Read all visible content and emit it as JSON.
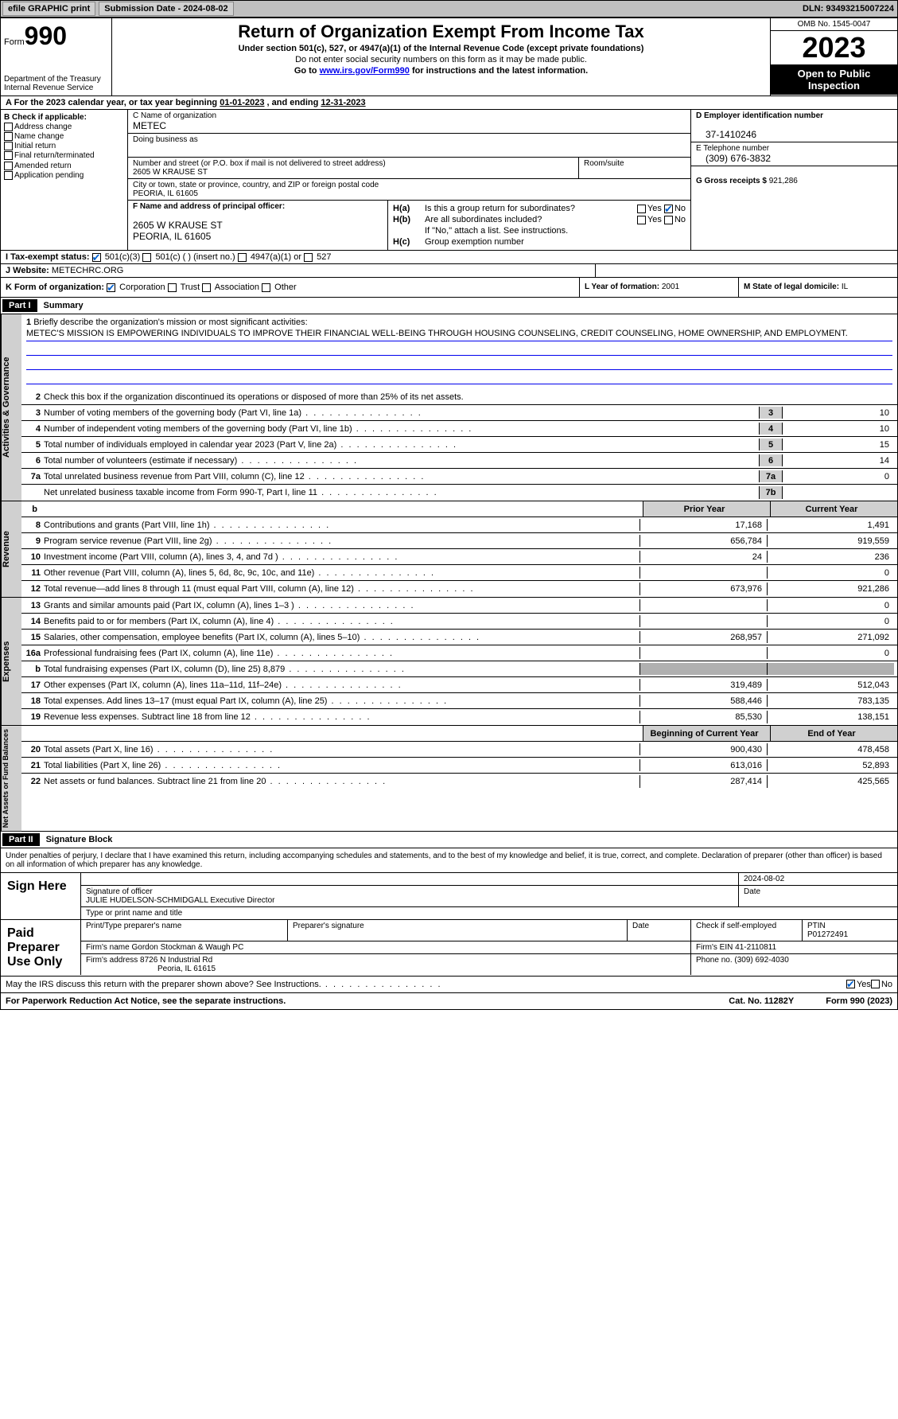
{
  "topbar": {
    "efile": "efile GRAPHIC print",
    "sub_label": "Submission Date - ",
    "sub_date": "2024-08-02",
    "dln_label": "DLN: ",
    "dln": "93493215007224"
  },
  "header": {
    "form_word": "Form",
    "form_no": "990",
    "dept": "Department of the Treasury\nInternal Revenue Service",
    "title": "Return of Organization Exempt From Income Tax",
    "sub1": "Under section 501(c), 527, or 4947(a)(1) of the Internal Revenue Code (except private foundations)",
    "sub2": "Do not enter social security numbers on this form as it may be made public.",
    "sub3_a": "Go to ",
    "sub3_link": "www.irs.gov/Form990",
    "sub3_b": " for instructions and the latest information.",
    "omb": "OMB No. 1545-0047",
    "year": "2023",
    "public": "Open to Public Inspection"
  },
  "a": {
    "text_a": "For the 2023 calendar year, or tax year beginning ",
    "begin": "01-01-2023",
    "text_b": " , and ending ",
    "end": "12-31-2023"
  },
  "b": {
    "title": "B Check if applicable:",
    "opts": [
      "Address change",
      "Name change",
      "Initial return",
      "Final return/terminated",
      "Amended return",
      "Application pending"
    ]
  },
  "c": {
    "name_lbl": "C Name of organization",
    "name": "METEC",
    "dba_lbl": "Doing business as",
    "street_lbl": "Number and street (or P.O. box if mail is not delivered to street address)",
    "street": "2605 W KRAUSE ST",
    "room_lbl": "Room/suite",
    "city_lbl": "City or town, state or province, country, and ZIP or foreign postal code",
    "city": "PEORIA, IL  61605"
  },
  "d": {
    "lbl": "D Employer identification number",
    "val": "37-1410246"
  },
  "e": {
    "lbl": "E Telephone number",
    "val": "(309) 676-3832"
  },
  "g": {
    "lbl": "G Gross receipts $",
    "val": "921,286"
  },
  "f": {
    "lbl": "F  Name and address of principal officer:",
    "addr1": "2605 W KRAUSE ST",
    "addr2": "PEORIA, IL  61605"
  },
  "h": {
    "a_lbl": "H(a)",
    "a_txt": "Is this a group return for subordinates?",
    "a_no": true,
    "b_lbl": "H(b)",
    "b_txt": "Are all subordinates included?",
    "b_note": "If \"No,\" attach a list. See instructions.",
    "c_lbl": "H(c)",
    "c_txt": "Group exemption number  "
  },
  "i": {
    "lbl": "I  Tax-exempt status:",
    "opts": [
      "501(c)(3)",
      "501(c) (  ) (insert no.)",
      "4947(a)(1) or",
      "527"
    ],
    "checked": 0
  },
  "j": {
    "lbl": "J  Website:  ",
    "val": "METECHRC.ORG"
  },
  "k": {
    "lbl": "K Form of organization:",
    "opts": [
      "Corporation",
      "Trust",
      "Association",
      "Other"
    ],
    "checked": 0
  },
  "l": {
    "lbl": "L Year of formation: ",
    "val": "2001"
  },
  "m": {
    "lbl": "M State of legal domicile: ",
    "val": "IL"
  },
  "part1": {
    "hdr": "Part I",
    "title": "Summary"
  },
  "gov": {
    "label": "Activities & Governance",
    "l1_lbl": "Briefly describe the organization's mission or most significant activities:",
    "l1_txt": "METEC'S MISSION IS EMPOWERING INDIVIDUALS TO IMPROVE THEIR FINANCIAL WELL-BEING THROUGH HOUSING COUNSELING, CREDIT COUNSELING, HOME OWNERSHIP, AND EMPLOYMENT.",
    "l2": "Check this box      if the organization discontinued its operations or disposed of more than 25% of its net assets.",
    "rows": [
      {
        "n": "3",
        "t": "Number of voting members of the governing body (Part VI, line 1a)",
        "bn": "3",
        "bv": "10"
      },
      {
        "n": "4",
        "t": "Number of independent voting members of the governing body (Part VI, line 1b)",
        "bn": "4",
        "bv": "10"
      },
      {
        "n": "5",
        "t": "Total number of individuals employed in calendar year 2023 (Part V, line 2a)",
        "bn": "5",
        "bv": "15"
      },
      {
        "n": "6",
        "t": "Total number of volunteers (estimate if necessary)",
        "bn": "6",
        "bv": "14"
      },
      {
        "n": "7a",
        "t": "Total unrelated business revenue from Part VIII, column (C), line 12",
        "bn": "7a",
        "bv": "0"
      },
      {
        "n": "",
        "t": "Net unrelated business taxable income from Form 990-T, Part I, line 11",
        "bn": "7b",
        "bv": ""
      }
    ]
  },
  "cols": {
    "b": "b",
    "prior": "Prior Year",
    "current": "Current Year"
  },
  "rev": {
    "label": "Revenue",
    "rows": [
      {
        "n": "8",
        "t": "Contributions and grants (Part VIII, line 1h)",
        "c1": "17,168",
        "c2": "1,491"
      },
      {
        "n": "9",
        "t": "Program service revenue (Part VIII, line 2g)",
        "c1": "656,784",
        "c2": "919,559"
      },
      {
        "n": "10",
        "t": "Investment income (Part VIII, column (A), lines 3, 4, and 7d )",
        "c1": "24",
        "c2": "236"
      },
      {
        "n": "11",
        "t": "Other revenue (Part VIII, column (A), lines 5, 6d, 8c, 9c, 10c, and 11e)",
        "c1": "",
        "c2": "0"
      },
      {
        "n": "12",
        "t": "Total revenue—add lines 8 through 11 (must equal Part VIII, column (A), line 12)",
        "c1": "673,976",
        "c2": "921,286"
      }
    ]
  },
  "exp": {
    "label": "Expenses",
    "rows": [
      {
        "n": "13",
        "t": "Grants and similar amounts paid (Part IX, column (A), lines 1–3 )",
        "c1": "",
        "c2": "0"
      },
      {
        "n": "14",
        "t": "Benefits paid to or for members (Part IX, column (A), line 4)",
        "c1": "",
        "c2": "0"
      },
      {
        "n": "15",
        "t": "Salaries, other compensation, employee benefits (Part IX, column (A), lines 5–10)",
        "c1": "268,957",
        "c2": "271,092"
      },
      {
        "n": "16a",
        "t": "Professional fundraising fees (Part IX, column (A), line 11e)",
        "c1": "",
        "c2": "0"
      },
      {
        "n": "b",
        "t": "Total fundraising expenses (Part IX, column (D), line 25) 8,879",
        "c1": "gray",
        "c2": "gray"
      },
      {
        "n": "17",
        "t": "Other expenses (Part IX, column (A), lines 11a–11d, 11f–24e)",
        "c1": "319,489",
        "c2": "512,043"
      },
      {
        "n": "18",
        "t": "Total expenses. Add lines 13–17 (must equal Part IX, column (A), line 25)",
        "c1": "588,446",
        "c2": "783,135"
      },
      {
        "n": "19",
        "t": "Revenue less expenses. Subtract line 18 from line 12",
        "c1": "85,530",
        "c2": "138,151"
      }
    ]
  },
  "net": {
    "label": "Net Assets or Fund Balances",
    "hdr1": "Beginning of Current Year",
    "hdr2": "End of Year",
    "rows": [
      {
        "n": "20",
        "t": "Total assets (Part X, line 16)",
        "c1": "900,430",
        "c2": "478,458"
      },
      {
        "n": "21",
        "t": "Total liabilities (Part X, line 26)",
        "c1": "613,016",
        "c2": "52,893"
      },
      {
        "n": "22",
        "t": "Net assets or fund balances. Subtract line 21 from line 20",
        "c1": "287,414",
        "c2": "425,565"
      }
    ]
  },
  "part2": {
    "hdr": "Part II",
    "title": "Signature Block"
  },
  "sig": {
    "decl": "Under penalties of perjury, I declare that I have examined this return, including accompanying schedules and statements, and to the best of my knowledge and belief, it is true, correct, and complete. Declaration of preparer (other than officer) is based on all information of which preparer has any knowledge.",
    "here_lbl": "Sign Here",
    "sig_of": "Signature of officer",
    "date_lbl": "Date",
    "date": "2024-08-02",
    "name": "JULIE HUDELSON-SCHMIDGALL  Executive Director",
    "name_lbl": "Type or print name and title",
    "paid_lbl": "Paid Preparer Use Only",
    "prep_name_lbl": "Print/Type preparer's name",
    "prep_sig_lbl": "Preparer's signature",
    "prep_date_lbl": "Date",
    "check_lbl": "Check       if self-employed",
    "ptin_lbl": "PTIN",
    "ptin": "P01272491",
    "firm_name_lbl": "Firm's name   ",
    "firm_name": "Gordon Stockman & Waugh PC",
    "firm_ein_lbl": "Firm's EIN   ",
    "firm_ein": "41-2110811",
    "firm_addr_lbl": "Firm's address  ",
    "firm_addr1": "8726 N Industrial Rd",
    "firm_addr2": "Peoria, IL  61615",
    "phone_lbl": "Phone no. ",
    "phone": "(309) 692-4030",
    "discuss": "May the IRS discuss this return with the preparer shown above? See Instructions.",
    "yes": "Yes",
    "no": "No"
  },
  "footer": {
    "pra": "For Paperwork Reduction Act Notice, see the separate instructions.",
    "cat": "Cat. No. 11282Y",
    "form": "Form 990 (2023)"
  }
}
